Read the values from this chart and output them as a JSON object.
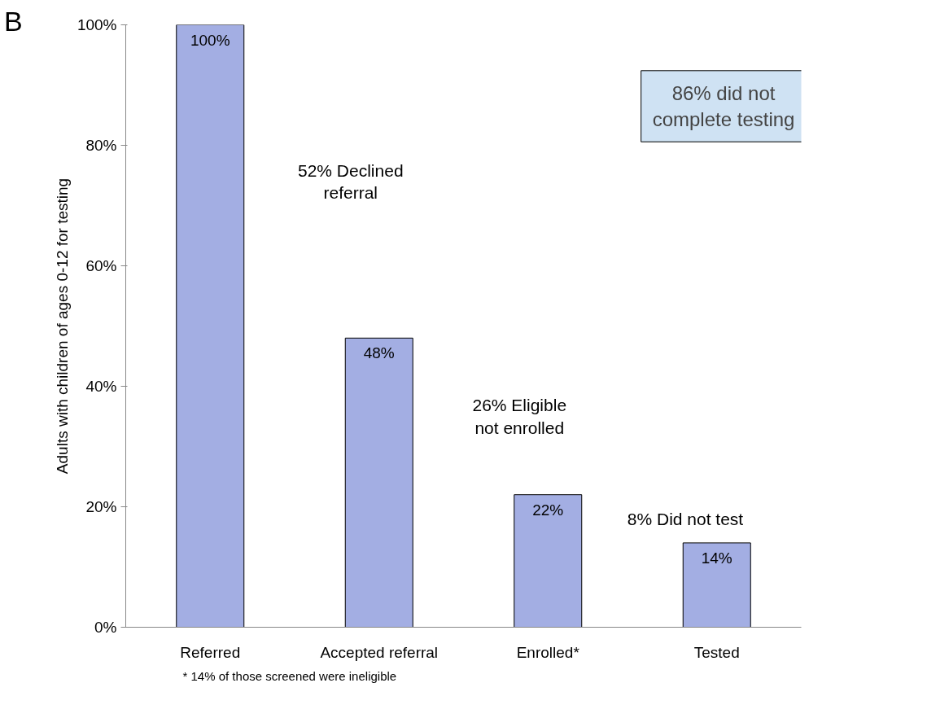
{
  "chart_data": {
    "type": "bar",
    "ylabel": "Adults with children of ages 0-12 for testing",
    "categories": [
      "Referred",
      "Accepted referral",
      "Enrolled*",
      "Tested"
    ],
    "values": [
      100,
      48,
      22,
      14
    ],
    "value_labels": [
      "100%",
      "48%",
      "22%",
      "14%"
    ],
    "color": "#a3aee3",
    "ylim": [
      0,
      100
    ],
    "yticks": [
      {
        "value": 0,
        "label": "0%"
      },
      {
        "value": 20,
        "label": "20%"
      },
      {
        "value": 40,
        "label": "40%"
      },
      {
        "value": 60,
        "label": "60%"
      },
      {
        "value": 80,
        "label": "80%"
      },
      {
        "value": 100,
        "label": "100%"
      }
    ],
    "grid": false,
    "annotations": [
      "B",
      "86% did not complete testing",
      "* 14% of those screened were ineligible",
      "52% Declined referral",
      "26% Eligible not enrolled",
      "8% Did not test"
    ]
  }
}
